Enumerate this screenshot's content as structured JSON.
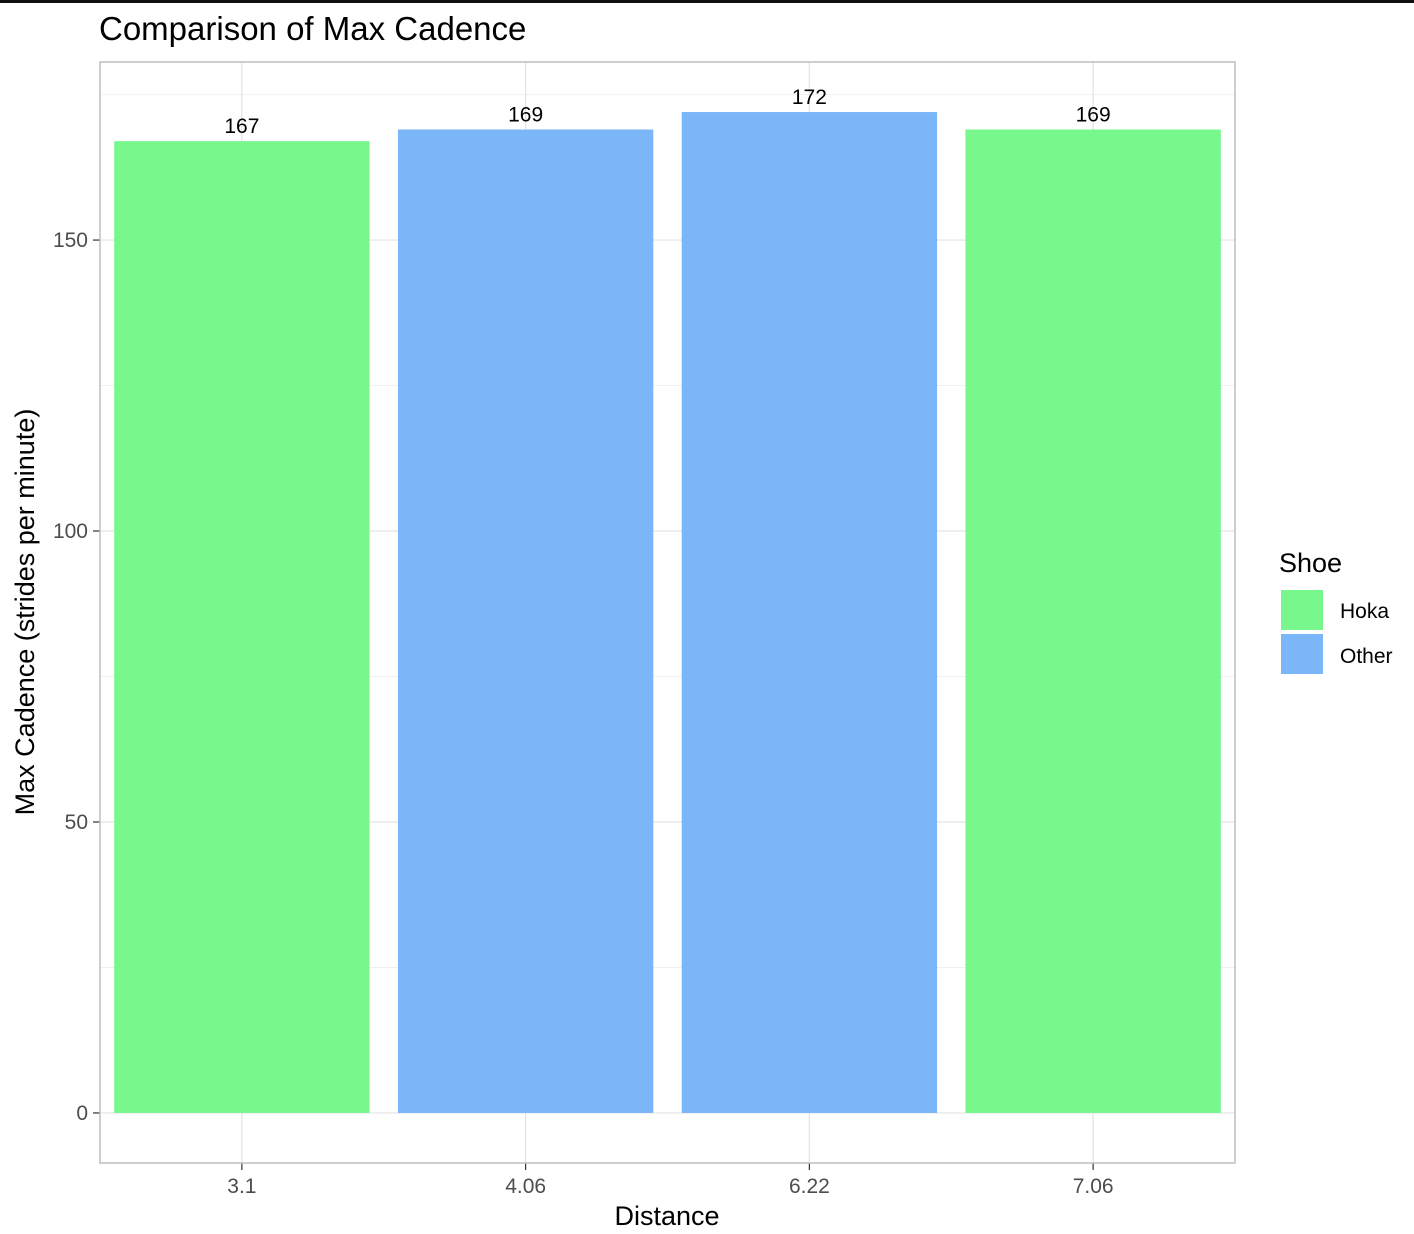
{
  "chart_data": {
    "type": "bar",
    "title": "Comparison of Max Cadence",
    "xlabel": "Distance",
    "ylabel": "Max Cadence (strides per minute)",
    "categories": [
      "3.1",
      "4.06",
      "6.22",
      "7.06"
    ],
    "values": [
      167,
      169,
      172,
      169
    ],
    "groups": [
      "Hoka",
      "Other",
      "Other",
      "Hoka"
    ],
    "data_labels": [
      "167",
      "169",
      "172",
      "169"
    ],
    "ylim": [
      -8.6,
      180.6
    ],
    "yticks": [
      0,
      50,
      100,
      150
    ],
    "ytick_labels": [
      "0",
      "50",
      "100",
      "150"
    ],
    "grid": true,
    "legend": {
      "title": "Shoe",
      "placement": "right",
      "entries": [
        {
          "label": "Hoka",
          "color": "#77F78C"
        },
        {
          "label": "Other",
          "color": "#7AB6F8"
        }
      ]
    }
  }
}
